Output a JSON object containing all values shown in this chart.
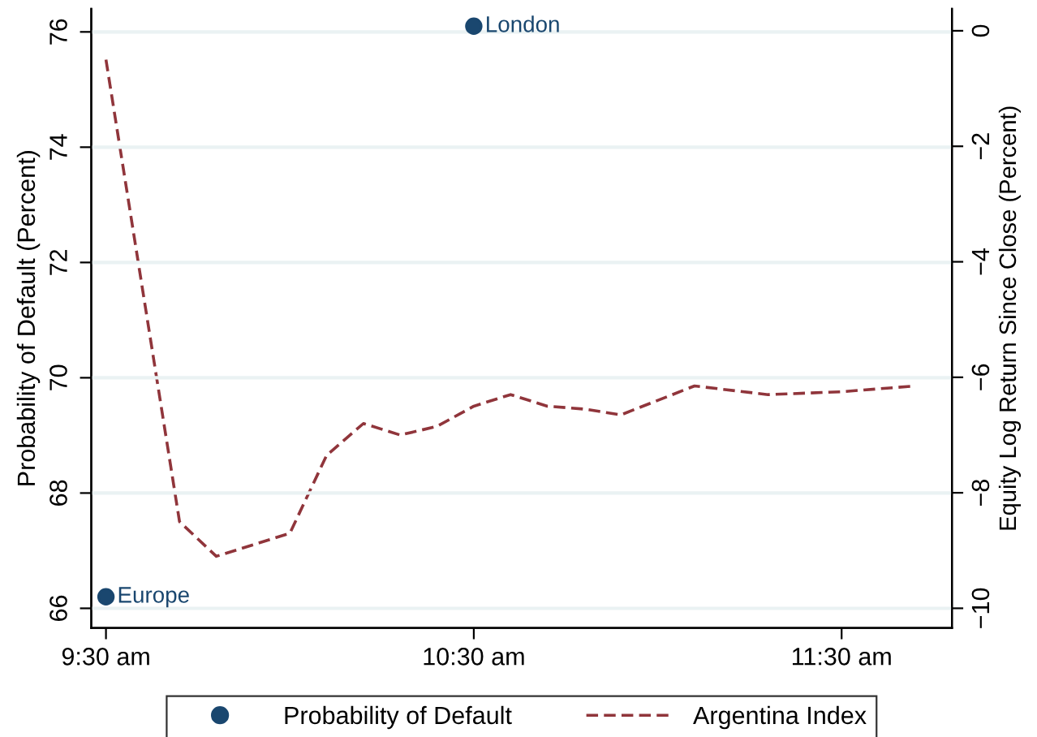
{
  "chart_data": {
    "type": "scatter",
    "ylabel": "Probability of Default (Percent)",
    "y2label": "Equity Log Return Since Close (Percent)",
    "xlim": [
      9.46,
      11.8
    ],
    "xticks": [
      {
        "value": 9.5,
        "label": "9:30 am"
      },
      {
        "value": 10.5,
        "label": "10:30 am"
      },
      {
        "value": 11.5,
        "label": "11:30 am"
      }
    ],
    "ylim": [
      65.66,
      76.4
    ],
    "yticks": [
      66,
      68,
      70,
      72,
      74,
      76
    ],
    "y2lim": [
      -10.34,
      0.38
    ],
    "y2ticks": [
      {
        "value": -10,
        "label": "−10"
      },
      {
        "value": -8,
        "label": "−8"
      },
      {
        "value": -6,
        "label": "−6"
      },
      {
        "value": -4,
        "label": "−4"
      },
      {
        "value": -2,
        "label": "−2"
      },
      0
    ],
    "grid": "y",
    "legend": "bottom",
    "series": [
      {
        "name": "Probability of Default",
        "marker": "circle",
        "color": "#1a476f",
        "x": [
          9.5,
          10.5
        ],
        "values": [
          66.2,
          76.1
        ]
      },
      {
        "name": "Argentina Index",
        "type": "line",
        "axis": "y2",
        "line_style": "dashed",
        "color": "#90353b",
        "x": [
          9.5,
          9.7,
          9.8,
          10.0,
          10.1,
          10.2,
          10.3,
          10.4,
          10.5,
          10.6,
          10.7,
          10.8,
          10.9,
          11.1,
          11.3,
          11.5,
          11.7
        ],
        "values": [
          -0.5,
          -8.5,
          -9.1,
          -8.7,
          -7.35,
          -6.8,
          -7.0,
          -6.85,
          -6.5,
          -6.3,
          -6.5,
          -6.55,
          -6.65,
          -6.15,
          -6.3,
          -6.25,
          -6.15
        ]
      }
    ],
    "annotations": [
      {
        "text": "Europe",
        "x": 9.5,
        "y": 66.2
      },
      {
        "text": "London",
        "x": 10.5,
        "y": 76.1
      }
    ]
  }
}
